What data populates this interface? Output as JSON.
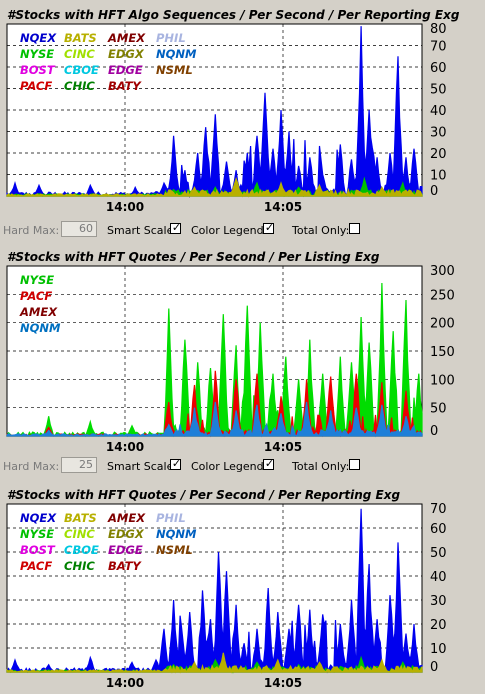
{
  "panels": [
    {
      "title": "#Stocks with HFT Algo Sequences / Per Second / Per Reporting Exg",
      "x_ticks": [
        "14:00",
        "14:05"
      ],
      "y_ticks": [
        "80",
        "70",
        "60",
        "50",
        "40",
        "30",
        "20",
        "10",
        "0"
      ],
      "legend": [
        {
          "label": "NQEX",
          "color": "#0000cc"
        },
        {
          "label": "BATS",
          "color": "#b8b000"
        },
        {
          "label": "AMEX",
          "color": "#800000"
        },
        {
          "label": "PHIL",
          "color": "#a8b4e0"
        },
        {
          "label": "NYSE",
          "color": "#00c000"
        },
        {
          "label": "CINC",
          "color": "#a0e000"
        },
        {
          "label": "EDGX",
          "color": "#808000"
        },
        {
          "label": "NQNM",
          "color": "#0060c0"
        },
        {
          "label": "BOST",
          "color": "#e000e0"
        },
        {
          "label": "CBOE",
          "color": "#00c8e0"
        },
        {
          "label": "EDGE",
          "color": "#a000a0"
        },
        {
          "label": "NSML",
          "color": "#804000"
        },
        {
          "label": "PACF",
          "color": "#d00000"
        },
        {
          "label": "CHIC",
          "color": "#008000"
        },
        {
          "label": "BATY",
          "color": "#a00000"
        }
      ]
    },
    {
      "title": "#Stocks with HFT Quotes / Per Second / Per Listing Exg",
      "x_ticks": [
        "14:00",
        "14:05"
      ],
      "y_ticks": [
        "300",
        "250",
        "200",
        "150",
        "100",
        "50",
        "0"
      ],
      "legend": [
        {
          "label": "NYSE",
          "color": "#00c000"
        },
        {
          "label": "PACF",
          "color": "#d00000"
        },
        {
          "label": "AMEX",
          "color": "#800000"
        },
        {
          "label": "NQNM",
          "color": "#0070c0"
        }
      ]
    },
    {
      "title": "#Stocks with HFT Quotes / Per Second / Per Reporting Exg",
      "x_ticks": [
        "14:00",
        "14:05"
      ],
      "y_ticks": [
        "70",
        "60",
        "50",
        "40",
        "30",
        "20",
        "10",
        "0"
      ],
      "legend": [
        {
          "label": "NQEX",
          "color": "#0000cc"
        },
        {
          "label": "BATS",
          "color": "#b8b000"
        },
        {
          "label": "AMEX",
          "color": "#800000"
        },
        {
          "label": "PHIL",
          "color": "#a8b4e0"
        },
        {
          "label": "NYSE",
          "color": "#00c000"
        },
        {
          "label": "CINC",
          "color": "#a0e000"
        },
        {
          "label": "EDGX",
          "color": "#808000"
        },
        {
          "label": "NQNM",
          "color": "#0060c0"
        },
        {
          "label": "BOST",
          "color": "#e000e0"
        },
        {
          "label": "CBOE",
          "color": "#00c8e0"
        },
        {
          "label": "EDGE",
          "color": "#a000a0"
        },
        {
          "label": "NSML",
          "color": "#804000"
        },
        {
          "label": "PACF",
          "color": "#d00000"
        },
        {
          "label": "CHIC",
          "color": "#008000"
        },
        {
          "label": "BATY",
          "color": "#a00000"
        }
      ]
    }
  ],
  "controls": [
    {
      "hard_max_label": "Hard Max:",
      "hard_max_value": "60",
      "smart_scale_label": "Smart Scale:",
      "smart_scale_checked": true,
      "color_legend_label": "Color Legend:",
      "color_legend_checked": true,
      "total_only_label": "Total Only:",
      "total_only_checked": false
    },
    {
      "hard_max_label": "Hard Max:",
      "hard_max_value": "25",
      "smart_scale_label": "Smart Scale:",
      "smart_scale_checked": true,
      "color_legend_label": "Color Legend:",
      "color_legend_checked": true,
      "total_only_label": "Total Only:",
      "total_only_checked": false
    }
  ],
  "chart_data": [
    {
      "type": "area",
      "title": "#Stocks with HFT Algo Sequences / Per Second / Per Reporting Exg",
      "xlabel": "",
      "ylabel": "",
      "x_ticks": [
        "14:00",
        "14:05"
      ],
      "ylim": [
        0,
        80
      ],
      "grid": true,
      "legend_position": "top-left",
      "series": [
        {
          "name": "NQEX",
          "color": "#0000ee",
          "peaks": [
            [
              0.02,
              6
            ],
            [
              0.08,
              5
            ],
            [
              0.2,
              5
            ],
            [
              0.31,
              4
            ],
            [
              0.36,
              2
            ],
            [
              0.38,
              6
            ],
            [
              0.4,
              28
            ],
            [
              0.43,
              12
            ],
            [
              0.46,
              20
            ],
            [
              0.48,
              32
            ],
            [
              0.5,
              38
            ],
            [
              0.53,
              16
            ],
            [
              0.55,
              12
            ],
            [
              0.58,
              20
            ],
            [
              0.6,
              28
            ],
            [
              0.62,
              48
            ],
            [
              0.64,
              22
            ],
            [
              0.66,
              40
            ],
            [
              0.68,
              30
            ],
            [
              0.7,
              14
            ],
            [
              0.73,
              18
            ],
            [
              0.76,
              10
            ],
            [
              0.8,
              24
            ],
            [
              0.83,
              17
            ],
            [
              0.85,
              79
            ],
            [
              0.87,
              40
            ],
            [
              0.89,
              18
            ],
            [
              0.92,
              20
            ],
            [
              0.94,
              65
            ],
            [
              0.96,
              18
            ],
            [
              0.98,
              22
            ]
          ]
        },
        {
          "name": "NYSE",
          "color": "#00c000",
          "peaks": [
            [
              0.4,
              3
            ],
            [
              0.5,
              4
            ],
            [
              0.6,
              6
            ],
            [
              0.7,
              4
            ],
            [
              0.86,
              8
            ],
            [
              0.95,
              6
            ]
          ]
        },
        {
          "name": "BATS",
          "color": "#b8b000",
          "peaks": [
            [
              0.45,
              4
            ],
            [
              0.55,
              8
            ],
            [
              0.66,
              6
            ],
            [
              0.75,
              5
            ],
            [
              0.9,
              4
            ]
          ]
        }
      ]
    },
    {
      "type": "area",
      "title": "#Stocks with HFT Quotes / Per Second / Per Listing Exg",
      "xlabel": "",
      "ylabel": "",
      "x_ticks": [
        "14:00",
        "14:05"
      ],
      "ylim": [
        0,
        300
      ],
      "grid": true,
      "legend_position": "top-left",
      "series": [
        {
          "name": "NYSE",
          "color": "#00dd00",
          "peaks": [
            [
              0.1,
              35
            ],
            [
              0.2,
              25
            ],
            [
              0.3,
              18
            ],
            [
              0.39,
              225
            ],
            [
              0.43,
              170
            ],
            [
              0.46,
              130
            ],
            [
              0.49,
              120
            ],
            [
              0.52,
              215
            ],
            [
              0.55,
              160
            ],
            [
              0.58,
              230
            ],
            [
              0.61,
              200
            ],
            [
              0.64,
              110
            ],
            [
              0.67,
              140
            ],
            [
              0.7,
              100
            ],
            [
              0.73,
              170
            ],
            [
              0.76,
              110
            ],
            [
              0.8,
              140
            ],
            [
              0.83,
              130
            ],
            [
              0.85,
              210
            ],
            [
              0.87,
              165
            ],
            [
              0.9,
              270
            ],
            [
              0.93,
              185
            ],
            [
              0.96,
              240
            ],
            [
              0.99,
              110
            ]
          ]
        },
        {
          "name": "PACF",
          "color": "#ee0000",
          "peaks": [
            [
              0.1,
              15
            ],
            [
              0.39,
              60
            ],
            [
              0.45,
              90
            ],
            [
              0.5,
              115
            ],
            [
              0.55,
              100
            ],
            [
              0.6,
              110
            ],
            [
              0.66,
              70
            ],
            [
              0.72,
              100
            ],
            [
              0.78,
              105
            ],
            [
              0.84,
              110
            ],
            [
              0.9,
              95
            ],
            [
              0.96,
              80
            ]
          ]
        },
        {
          "name": "NQNM",
          "color": "#1e7fd8",
          "peaks": [
            [
              0.1,
              10
            ],
            [
              0.39,
              20
            ],
            [
              0.45,
              50
            ],
            [
              0.5,
              60
            ],
            [
              0.55,
              45
            ],
            [
              0.6,
              55
            ],
            [
              0.66,
              40
            ],
            [
              0.72,
              60
            ],
            [
              0.78,
              45
            ],
            [
              0.84,
              50
            ],
            [
              0.9,
              55
            ],
            [
              0.96,
              35
            ]
          ]
        }
      ]
    },
    {
      "type": "area",
      "title": "#Stocks with HFT Quotes / Per Second / Per Reporting Exg",
      "xlabel": "",
      "ylabel": "",
      "x_ticks": [
        "14:00",
        "14:05"
      ],
      "ylim": [
        0,
        70
      ],
      "grid": true,
      "legend_position": "top-left",
      "series": [
        {
          "name": "NQEX",
          "color": "#0000ee",
          "peaks": [
            [
              0.02,
              5
            ],
            [
              0.1,
              3
            ],
            [
              0.2,
              6
            ],
            [
              0.3,
              4
            ],
            [
              0.36,
              5
            ],
            [
              0.38,
              18
            ],
            [
              0.4,
              30
            ],
            [
              0.42,
              18
            ],
            [
              0.44,
              25
            ],
            [
              0.47,
              34
            ],
            [
              0.49,
              22
            ],
            [
              0.51,
              50
            ],
            [
              0.53,
              42
            ],
            [
              0.55,
              28
            ],
            [
              0.57,
              12
            ],
            [
              0.6,
              18
            ],
            [
              0.63,
              35
            ],
            [
              0.65,
              25
            ],
            [
              0.68,
              18
            ],
            [
              0.7,
              28
            ],
            [
              0.73,
              26
            ],
            [
              0.76,
              24
            ],
            [
              0.8,
              20
            ],
            [
              0.83,
              30
            ],
            [
              0.85,
              68
            ],
            [
              0.87,
              45
            ],
            [
              0.89,
              22
            ],
            [
              0.92,
              32
            ],
            [
              0.94,
              54
            ],
            [
              0.96,
              16
            ],
            [
              0.98,
              20
            ]
          ]
        },
        {
          "name": "NYSE",
          "color": "#00c000",
          "peaks": [
            [
              0.4,
              3
            ],
            [
              0.5,
              5
            ],
            [
              0.6,
              4
            ],
            [
              0.7,
              3
            ],
            [
              0.85,
              6
            ],
            [
              0.95,
              4
            ]
          ]
        },
        {
          "name": "BATS",
          "color": "#b8b000",
          "peaks": [
            [
              0.45,
              4
            ],
            [
              0.52,
              8
            ],
            [
              0.65,
              5
            ],
            [
              0.75,
              4
            ],
            [
              0.9,
              5
            ]
          ]
        }
      ]
    }
  ]
}
